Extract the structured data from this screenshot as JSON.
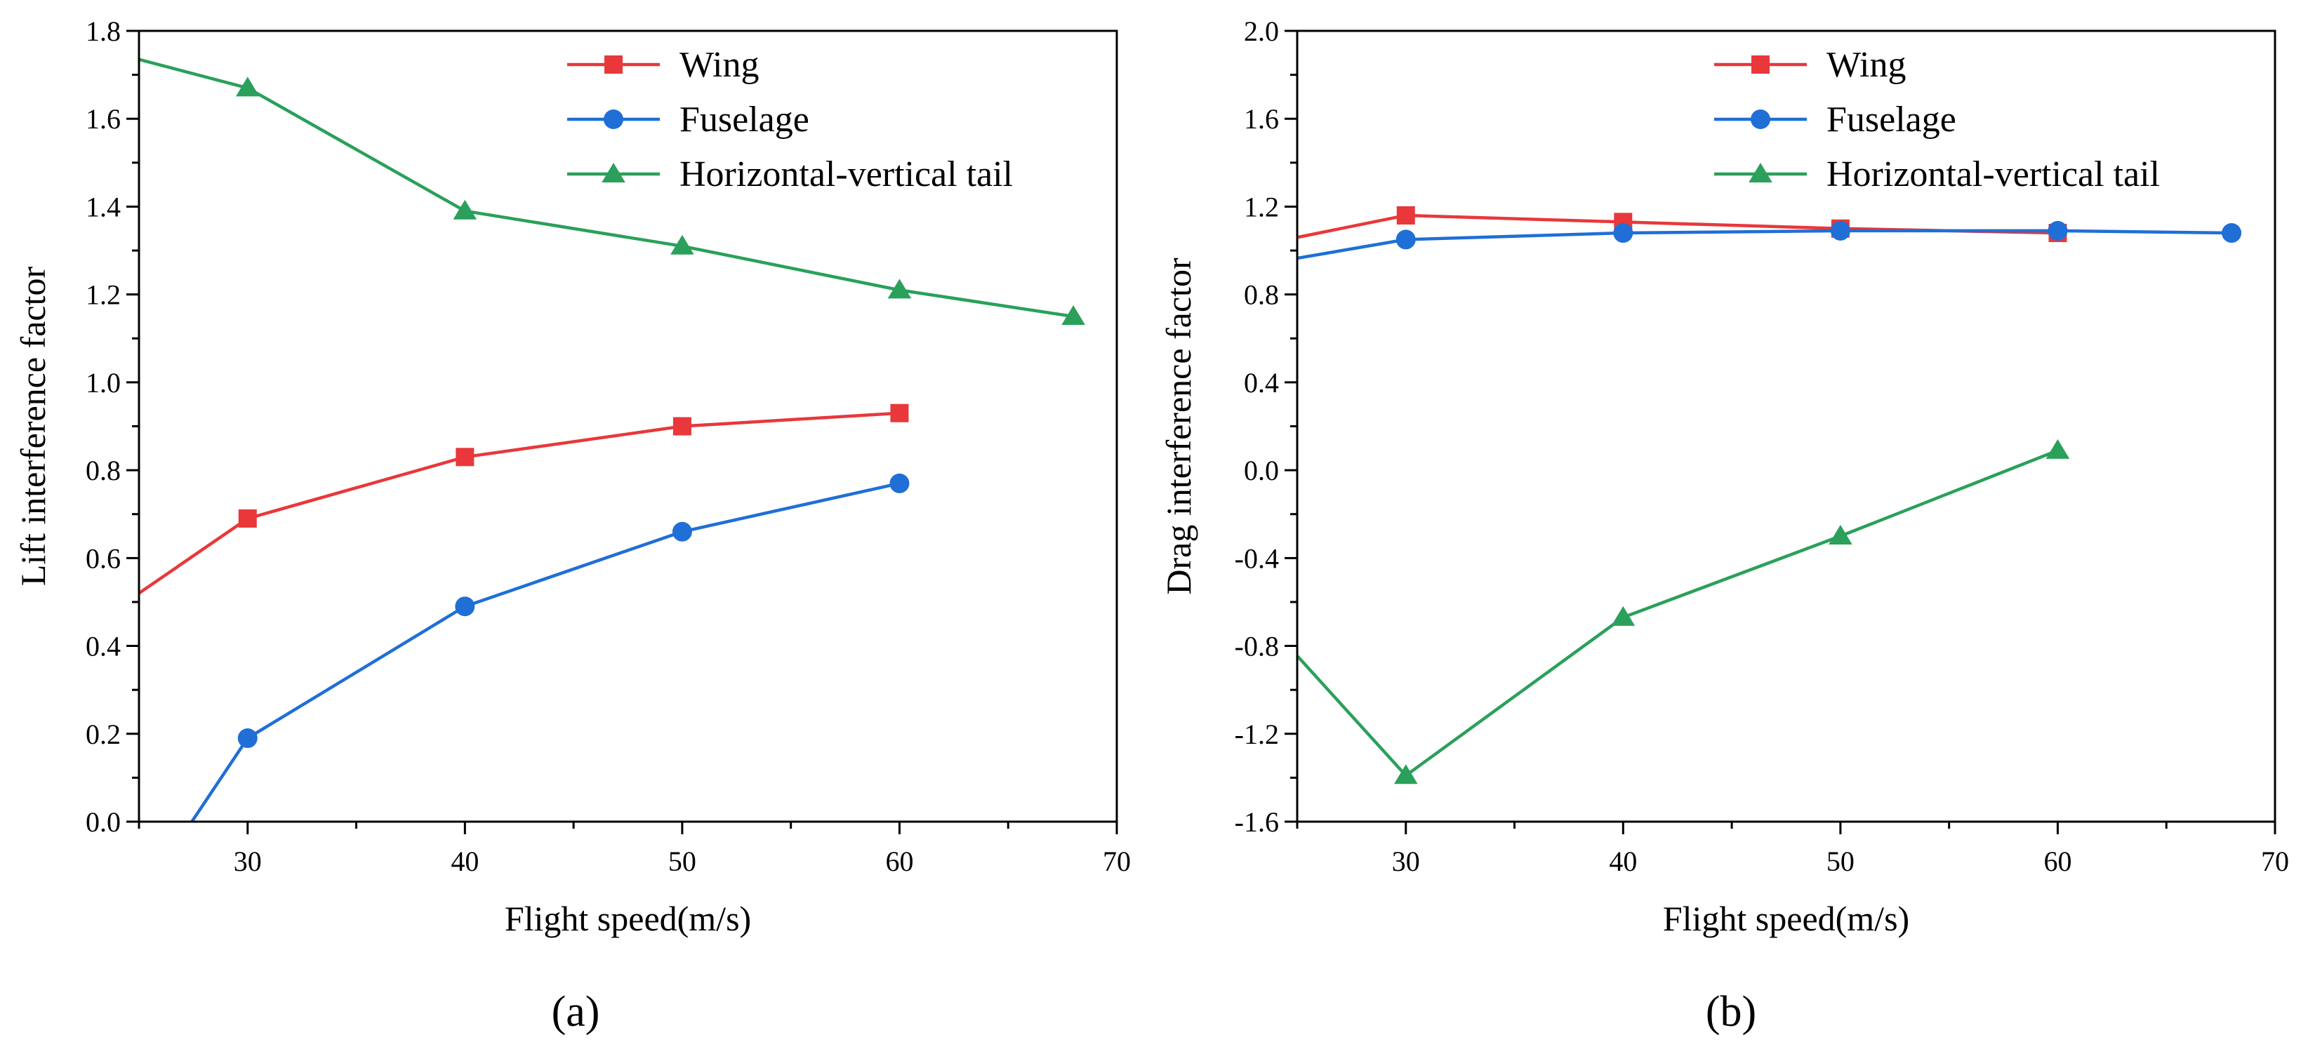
{
  "colors": {
    "Wing": "#e8383b",
    "Fuselage": "#1f6fd6",
    "Horizontal-vertical tail": "#2aa05a"
  },
  "panel_labels": [
    "(a)",
    "(b)"
  ],
  "chart_data": [
    {
      "type": "line",
      "xlabel": "Flight speed(m/s)",
      "ylabel": "Lift interference factor",
      "xlim": [
        25,
        70
      ],
      "ylim": [
        0.0,
        1.8
      ],
      "xticks": [
        30,
        40,
        50,
        60,
        70
      ],
      "xtick_labels": [
        "30",
        "40",
        "50",
        "60",
        "70"
      ],
      "yticks": [
        0.0,
        0.2,
        0.4,
        0.6,
        0.8,
        1.0,
        1.2,
        1.4,
        1.6,
        1.8
      ],
      "ytick_labels": [
        "0.0",
        "0.2",
        "0.4",
        "0.6",
        "0.8",
        "1.0",
        "1.2",
        "1.4",
        "1.6",
        "1.8"
      ],
      "legend_position": "top-right",
      "series": [
        {
          "name": "Wing",
          "marker": "square",
          "x": [
            20,
            30,
            40,
            50,
            60
          ],
          "y": [
            0.35,
            0.69,
            0.83,
            0.9,
            0.93
          ]
        },
        {
          "name": "Fuselage",
          "marker": "circle",
          "x": [
            20,
            30,
            40,
            50,
            60
          ],
          "y": [
            -0.55,
            0.19,
            0.49,
            0.66,
            0.77
          ]
        },
        {
          "name": "Horizontal-vertical tail",
          "marker": "triangle",
          "x": [
            20,
            30,
            40,
            50,
            60,
            68
          ],
          "y": [
            1.8,
            1.67,
            1.39,
            1.31,
            1.21,
            1.15
          ]
        }
      ]
    },
    {
      "type": "line",
      "xlabel": "Flight speed(m/s)",
      "ylabel": "Drag interference factor",
      "xlim": [
        25,
        70
      ],
      "ylim": [
        -1.6,
        2.0
      ],
      "xticks": [
        30,
        40,
        50,
        60,
        70
      ],
      "xtick_labels": [
        "30",
        "40",
        "50",
        "60",
        "70"
      ],
      "yticks": [
        -1.6,
        -1.2,
        -0.8,
        -0.4,
        0.0,
        0.4,
        0.8,
        1.2,
        1.6,
        2.0
      ],
      "ytick_labels": [
        "-1.6",
        "-1.2",
        "-0.8",
        "-0.4",
        "0.0",
        "0.4",
        "0.8",
        "1.2",
        "1.6",
        "2.0"
      ],
      "legend_position": "top-right",
      "series": [
        {
          "name": "Wing",
          "marker": "square",
          "x": [
            20,
            30,
            40,
            50,
            60
          ],
          "y": [
            0.96,
            1.16,
            1.13,
            1.1,
            1.08
          ]
        },
        {
          "name": "Fuselage",
          "marker": "circle",
          "x": [
            20,
            30,
            40,
            50,
            60,
            68
          ],
          "y": [
            0.88,
            1.05,
            1.08,
            1.09,
            1.09,
            1.08
          ]
        },
        {
          "name": "Horizontal-vertical tail",
          "marker": "triangle",
          "x": [
            20,
            30,
            40,
            50,
            60
          ],
          "y": [
            -0.3,
            -1.39,
            -0.67,
            -0.3,
            0.09
          ]
        }
      ]
    }
  ]
}
